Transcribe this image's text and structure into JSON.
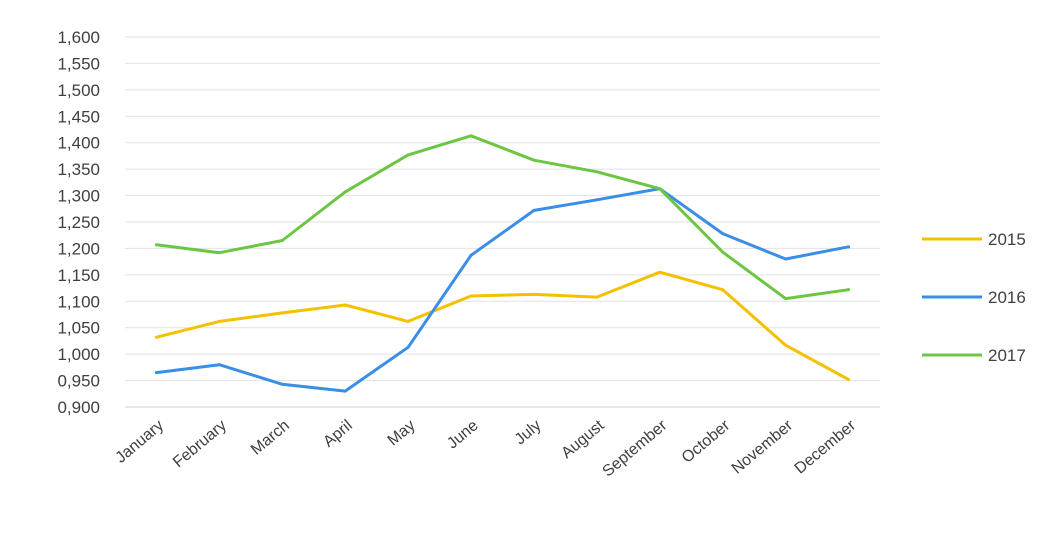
{
  "chart_data": {
    "type": "line",
    "title": "",
    "xlabel": "",
    "ylabel": "",
    "categories": [
      "January",
      "February",
      "March",
      "April",
      "May",
      "June",
      "July",
      "August",
      "September",
      "October",
      "November",
      "December"
    ],
    "ylim": [
      0.9,
      1.6
    ],
    "yticks": [
      "0,900",
      "0,950",
      "1,000",
      "1,050",
      "1,100",
      "1,150",
      "1,200",
      "1,250",
      "1,300",
      "1,350",
      "1,400",
      "1,450",
      "1,500",
      "1,550",
      "1,600"
    ],
    "ytick_values": [
      0.9,
      0.95,
      1.0,
      1.05,
      1.1,
      1.15,
      1.2,
      1.25,
      1.3,
      1.35,
      1.4,
      1.45,
      1.5,
      1.55,
      1.6
    ],
    "grid": true,
    "legend_position": "right",
    "series": [
      {
        "name": "2015",
        "color": "#f5c000",
        "values": [
          1.032,
          1.062,
          1.078,
          1.093,
          1.062,
          1.11,
          1.113,
          1.108,
          1.155,
          1.122,
          1.017,
          0.952
        ]
      },
      {
        "name": "2016",
        "color": "#3a8ee6",
        "values": [
          0.965,
          0.98,
          0.943,
          0.93,
          1.013,
          1.187,
          1.272,
          1.292,
          1.313,
          1.228,
          1.18,
          1.203
        ]
      },
      {
        "name": "2017",
        "color": "#6cc644",
        "values": [
          1.207,
          1.192,
          1.215,
          1.307,
          1.377,
          1.413,
          1.367,
          1.345,
          1.313,
          1.193,
          1.105,
          1.122
        ]
      }
    ]
  }
}
